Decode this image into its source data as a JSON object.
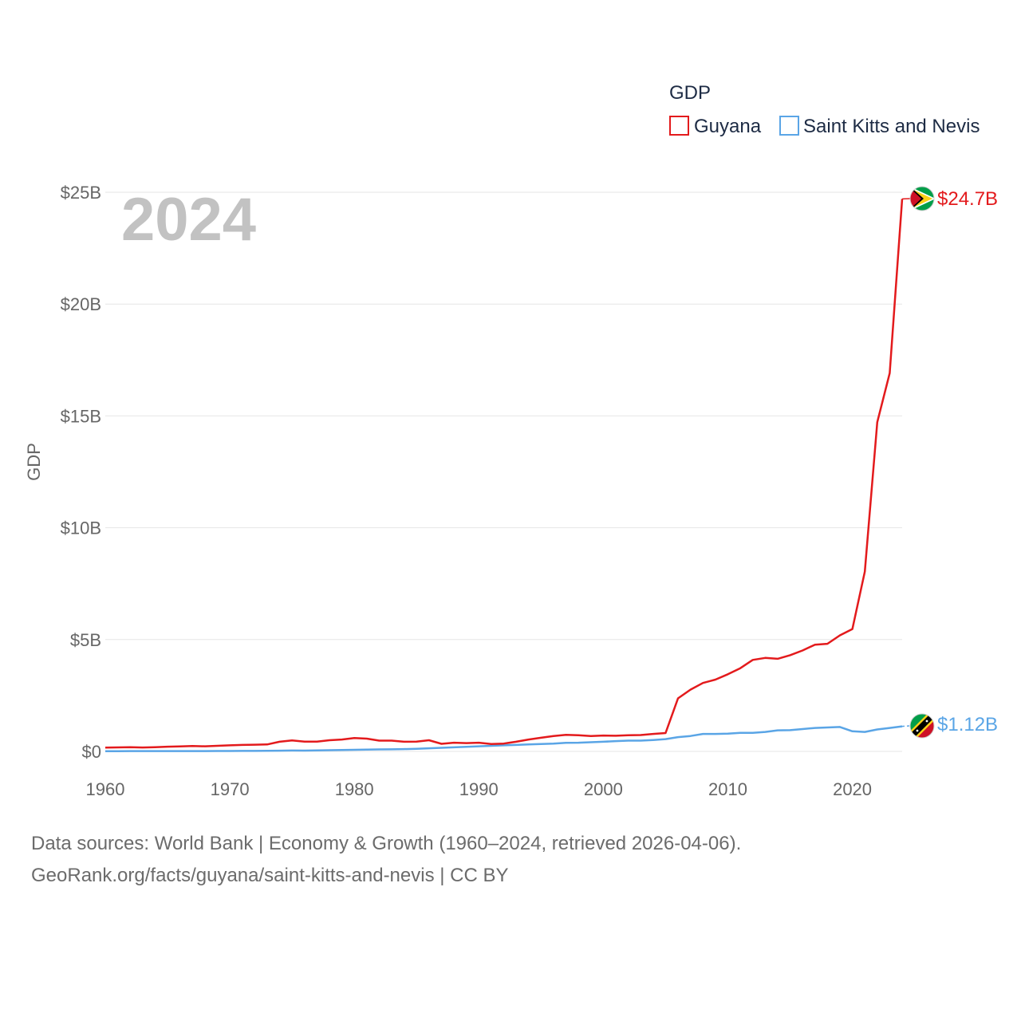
{
  "chart_data": {
    "type": "line",
    "year_label": "2024",
    "ylabel": "GDP",
    "xlabel": "",
    "xlim": [
      1960,
      2024
    ],
    "ylim": [
      0,
      25000000000
    ],
    "x_ticks": [
      1960,
      1970,
      1980,
      1990,
      2000,
      2010,
      2020
    ],
    "x_tick_labels": [
      "1960",
      "1970",
      "1980",
      "1990",
      "2000",
      "2010",
      "2020"
    ],
    "y_ticks": [
      0,
      5000000000,
      10000000000,
      15000000000,
      20000000000,
      25000000000
    ],
    "y_tick_labels": [
      "$0",
      "$5B",
      "$10B",
      "$15B",
      "$20B",
      "$25B"
    ],
    "legend": {
      "title": "GDP",
      "placement": "top-right",
      "items": [
        "Guyana",
        "Saint Kitts and Nevis"
      ]
    },
    "series": [
      {
        "name": "Guyana",
        "color": "#e31a1c",
        "end_label": "$24.7B",
        "flag_icon": "guyana-flag-icon",
        "x": [
          1960,
          1961,
          1962,
          1963,
          1964,
          1965,
          1966,
          1967,
          1968,
          1969,
          1970,
          1971,
          1972,
          1973,
          1974,
          1975,
          1976,
          1977,
          1978,
          1979,
          1980,
          1981,
          1982,
          1983,
          1984,
          1985,
          1986,
          1987,
          1988,
          1989,
          1990,
          1991,
          1992,
          1993,
          1994,
          1995,
          1996,
          1997,
          1998,
          1999,
          2000,
          2001,
          2002,
          2003,
          2004,
          2005,
          2006,
          2007,
          2008,
          2009,
          2010,
          2011,
          2012,
          2013,
          2014,
          2015,
          2016,
          2017,
          2018,
          2019,
          2020,
          2021,
          2022,
          2023,
          2024
        ],
        "values": [
          170000000,
          180000000,
          185000000,
          175000000,
          190000000,
          210000000,
          225000000,
          240000000,
          230000000,
          250000000,
          270000000,
          290000000,
          300000000,
          310000000,
          430000000,
          490000000,
          440000000,
          440000000,
          500000000,
          530000000,
          600000000,
          570000000,
          480000000,
          480000000,
          430000000,
          440000000,
          500000000,
          340000000,
          390000000,
          370000000,
          390000000,
          330000000,
          350000000,
          430000000,
          530000000,
          610000000,
          690000000,
          740000000,
          720000000,
          690000000,
          710000000,
          700000000,
          720000000,
          730000000,
          780000000,
          820000000,
          2370000000,
          2760000000,
          3060000000,
          3210000000,
          3450000000,
          3720000000,
          4090000000,
          4180000000,
          4140000000,
          4300000000,
          4510000000,
          4770000000,
          4810000000,
          5190000000,
          5470000000,
          8040000000,
          14720000000,
          16910000000,
          24700000000
        ]
      },
      {
        "name": "Saint Kitts and Nevis",
        "color": "#5aa5e6",
        "end_label": "$1.12B",
        "flag_icon": "saint-kitts-and-nevis-flag-icon",
        "x": [
          1960,
          1961,
          1962,
          1963,
          1964,
          1965,
          1966,
          1967,
          1968,
          1969,
          1970,
          1971,
          1972,
          1973,
          1974,
          1975,
          1976,
          1977,
          1978,
          1979,
          1980,
          1981,
          1982,
          1983,
          1984,
          1985,
          1986,
          1987,
          1988,
          1989,
          1990,
          1991,
          1992,
          1993,
          1994,
          1995,
          1996,
          1997,
          1998,
          1999,
          2000,
          2001,
          2002,
          2003,
          2004,
          2005,
          2006,
          2007,
          2008,
          2009,
          2010,
          2011,
          2012,
          2013,
          2014,
          2015,
          2016,
          2017,
          2018,
          2019,
          2020,
          2021,
          2022,
          2023,
          2024
        ],
        "values": [
          12000000,
          12000000,
          13000000,
          13000000,
          14000000,
          14000000,
          15000000,
          16000000,
          16000000,
          17000000,
          18000000,
          20000000,
          23000000,
          26000000,
          31000000,
          38000000,
          36000000,
          44000000,
          52000000,
          60000000,
          70000000,
          80000000,
          88000000,
          94000000,
          104000000,
          116000000,
          140000000,
          160000000,
          182000000,
          208000000,
          230000000,
          250000000,
          270000000,
          290000000,
          310000000,
          330000000,
          350000000,
          380000000,
          390000000,
          410000000,
          430000000,
          460000000,
          480000000,
          480000000,
          510000000,
          550000000,
          640000000,
          690000000,
          780000000,
          780000000,
          790000000,
          830000000,
          830000000,
          870000000,
          940000000,
          950000000,
          1000000000,
          1050000000,
          1070000000,
          1090000000,
          900000000,
          870000000,
          980000000,
          1050000000,
          1120000000
        ]
      }
    ]
  },
  "footer": {
    "line1": "Data sources: World Bank | Economy & Growth (1960–2024, retrieved 2026-04-06).",
    "line2": "GeoRank.org/facts/guyana/saint-kitts-and-nevis | CC BY"
  }
}
